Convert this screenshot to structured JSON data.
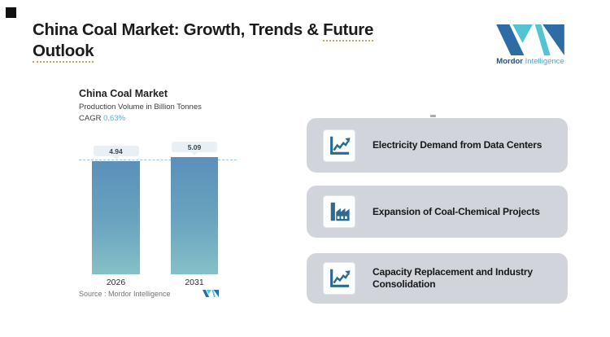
{
  "header": {
    "title_prefix": "China Coal Market: Growth, Trends & ",
    "title_underlined_word": "Future",
    "title_line2": "Outlook"
  },
  "brand": {
    "name_primary": "Mordor",
    "name_secondary": "Intelligence"
  },
  "chart_data": {
    "type": "bar",
    "title": "China Coal Market",
    "subtitle": "Production Volume in Billion Tonnes",
    "cagr_label": "CAGR",
    "cagr_value": "0.63%",
    "categories": [
      "2026",
      "2031"
    ],
    "values": [
      4.94,
      5.09
    ],
    "value_labels": [
      "4.94",
      "5.09"
    ],
    "reference_line_value": 4.94,
    "ylabel": "Production Volume in Billion Tonnes",
    "xlabel": "",
    "legend": "none",
    "grid": "off",
    "bar_color_top": "#5b90ba",
    "bar_color_bottom": "#86c0c8",
    "source_label": "Source :  Mordor Intelligence"
  },
  "drivers": {
    "items": [
      {
        "icon": "line-chart-icon",
        "label": "Electricity Demand from Data Centers"
      },
      {
        "icon": "factory-icon",
        "label": "Expansion of Coal-Chemical Projects"
      },
      {
        "icon": "line-chart-icon",
        "label": "Capacity Replacement and Industry Consolidation"
      }
    ]
  }
}
